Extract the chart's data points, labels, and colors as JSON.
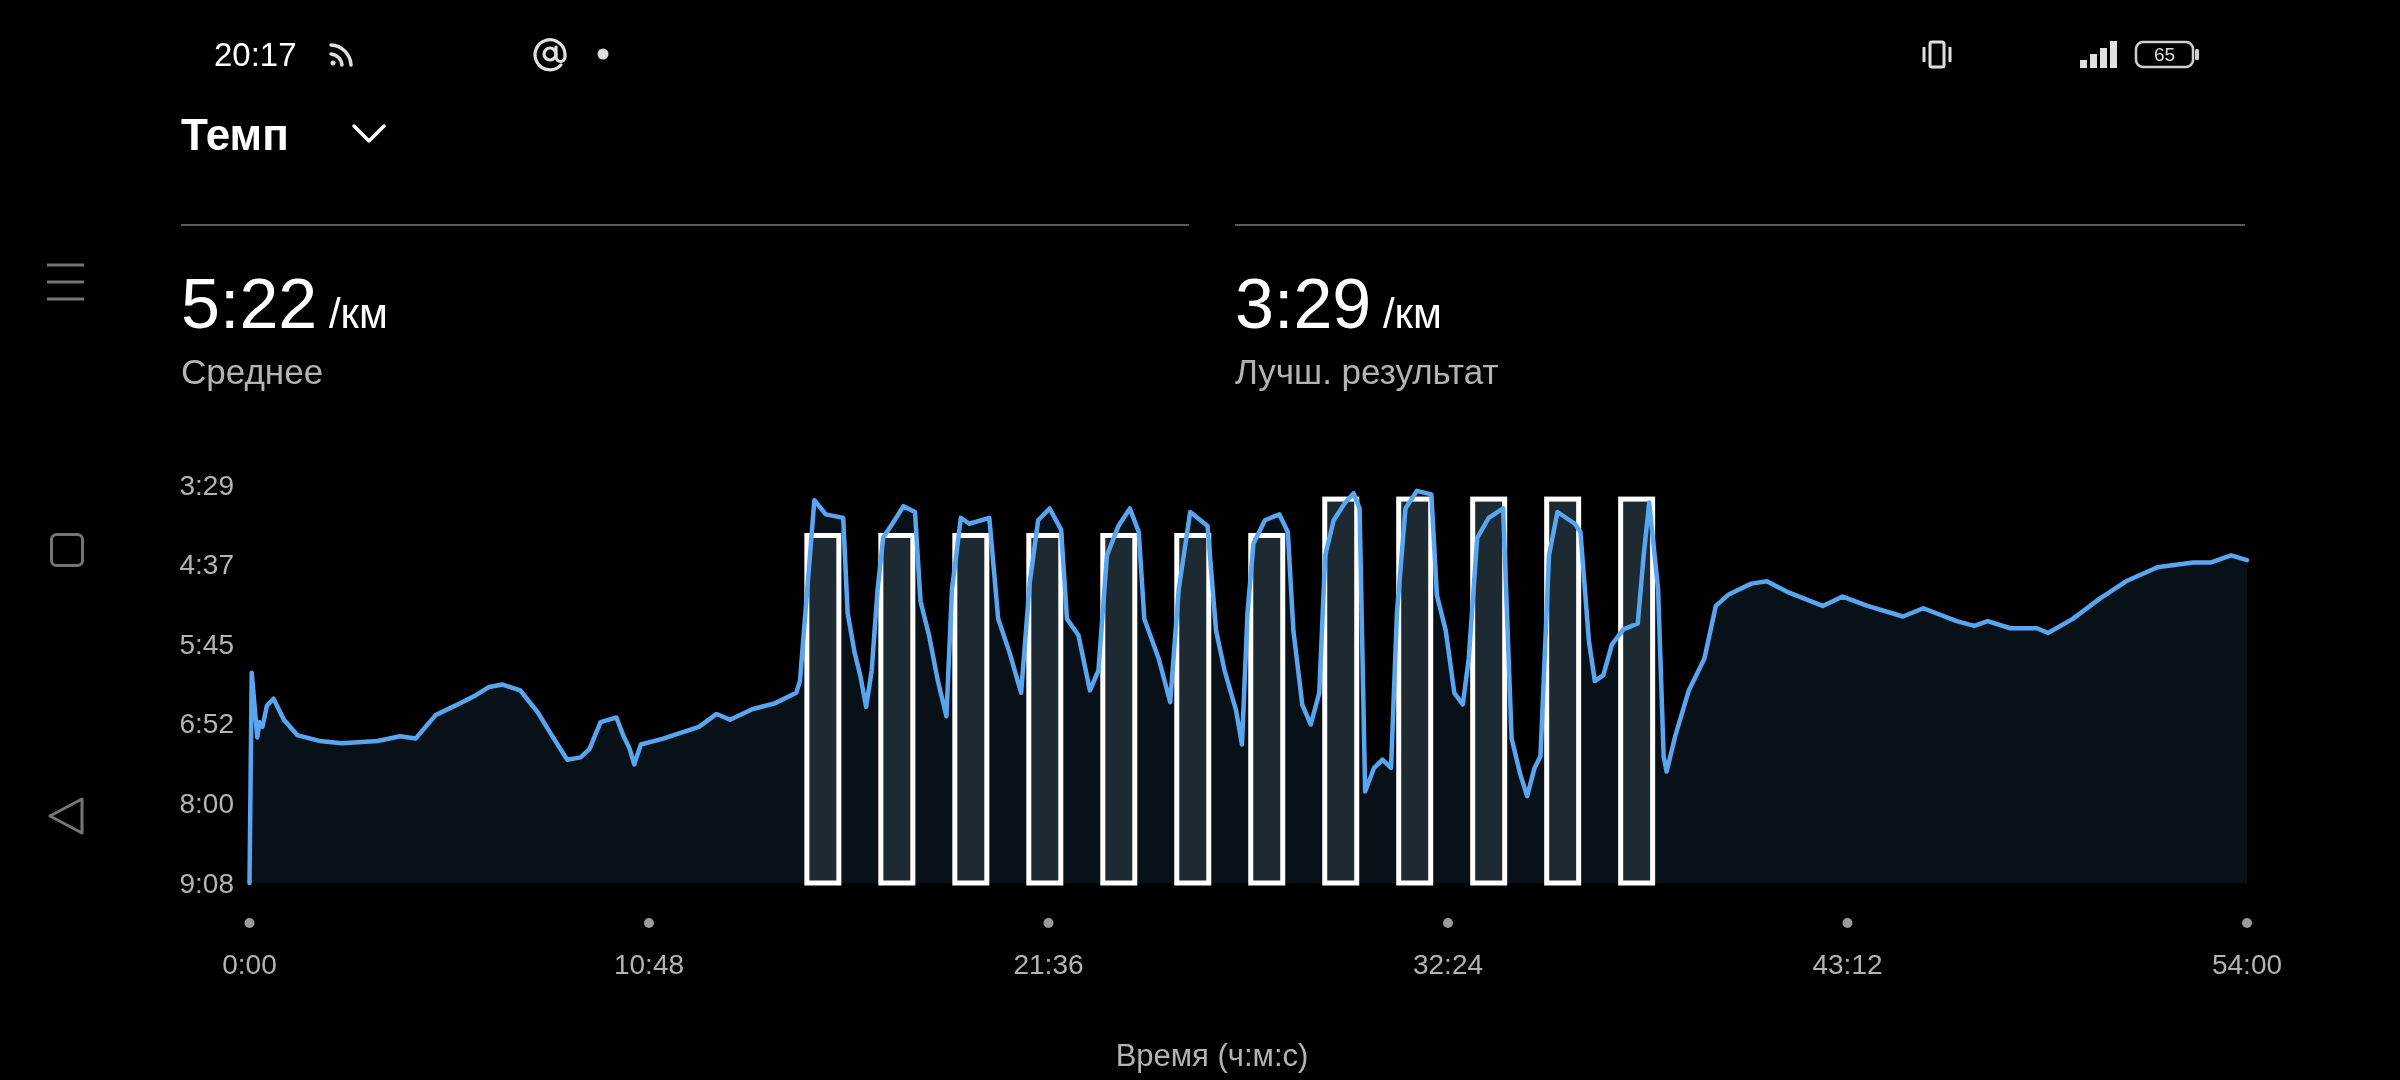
{
  "chart_data": {
    "type": "line",
    "title": "Темп",
    "xlabel": "Время (ч:м:с)",
    "annotations": [
      "5:22 /км",
      "Среднее",
      "3:29 /км",
      "Лучш. результат",
      "20:17",
      "65"
    ],
    "xlim": [
      0,
      54
    ],
    "xticks": [
      {
        "value": 0,
        "label": "0:00"
      },
      {
        "value": 10.8,
        "label": "10:48"
      },
      {
        "value": 21.6,
        "label": "21:36"
      },
      {
        "value": 32.4,
        "label": "32:24"
      },
      {
        "value": 43.2,
        "label": "43:12"
      },
      {
        "value": 54,
        "label": "54:00"
      }
    ],
    "ylim": [
      548,
      209
    ],
    "yticks": [
      {
        "value": 209,
        "label": "3:29"
      },
      {
        "value": 277,
        "label": "4:37"
      },
      {
        "value": 345,
        "label": "5:45"
      },
      {
        "value": 412,
        "label": "6:52"
      },
      {
        "value": 480,
        "label": "8:00"
      },
      {
        "value": 548,
        "label": "9:08"
      }
    ],
    "series": [
      {
        "color": "#58a5f0",
        "x": [
          0,
          0.06,
          0.21,
          0.27,
          0.35,
          0.47,
          0.65,
          0.93,
          1.29,
          1.89,
          2.5,
          3.46,
          4.07,
          4.49,
          5.03,
          5.75,
          6.12,
          6.48,
          6.84,
          7.32,
          7.8,
          8.17,
          8.59,
          8.95,
          9.19,
          9.49,
          9.92,
          10.1,
          10.28,
          10.4,
          10.58,
          11.18,
          12.15,
          12.63,
          12.99,
          13.59,
          14.2,
          14.78,
          14.88,
          15.27,
          15.58,
          16.05,
          16.17,
          16.36,
          16.51,
          16.67,
          16.82,
          16.98,
          17.13,
          17.44,
          17.68,
          17.99,
          18.14,
          18.37,
          18.61,
          18.84,
          18.99,
          19.23,
          19.46,
          20,
          20.24,
          20.55,
          20.86,
          21.09,
          21.32,
          21.63,
          21.94,
          22.1,
          22.41,
          22.72,
          22.95,
          23.18,
          23.49,
          23.8,
          24.04,
          24.19,
          24.58,
          24.89,
          25.12,
          25.43,
          25.9,
          26.13,
          26.36,
          26.67,
          26.83,
          26.98,
          27.14,
          27.45,
          27.84,
          28.07,
          28.22,
          28.46,
          28.69,
          28.92,
          29.08,
          29.31,
          29.62,
          29.85,
          30.01,
          30.16,
          30.4,
          30.63,
          30.86,
          31.02,
          31.25,
          31.56,
          31.95,
          32.1,
          32.34,
          32.57,
          32.8,
          32.96,
          33.19,
          33.5,
          33.89,
          34.12,
          34.35,
          34.54,
          34.74,
          34.9,
          35.13,
          35.36,
          35.83,
          35.98,
          36.21,
          36.37,
          36.6,
          36.83,
          37.14,
          37.53,
          37.69,
          37.84,
          37.95,
          38.08,
          38.23,
          38.31,
          38.55,
          38.91,
          39.33,
          39.64,
          40,
          40.6,
          41.02,
          41.57,
          42.53,
          43.07,
          43.74,
          44.7,
          45.25,
          46.15,
          46.63,
          46.99,
          47.6,
          48.32,
          48.62,
          49.29,
          50.01,
          50.73,
          51.58,
          52.54,
          53.03,
          53.57,
          54
        ],
        "values": [
          548,
          369,
          424,
          411,
          415,
          397,
          391,
          409,
          422,
          427,
          429,
          427,
          423,
          425,
          405,
          394,
          388,
          381,
          379,
          384,
          403,
          422,
          443,
          441,
          434,
          411,
          407,
          422,
          434,
          447,
          430,
          425,
          415,
          404,
          409,
          400,
          395,
          386,
          376,
          222,
          234,
          237,
          318,
          352,
          371,
          398,
          367,
          298,
          254,
          239,
          227,
          232,
          308,
          337,
          376,
          406,
          298,
          237,
          242,
          237,
          323,
          352,
          386,
          293,
          239,
          229,
          247,
          323,
          337,
          384,
          367,
          269,
          244,
          229,
          249,
          323,
          357,
          394,
          298,
          232,
          244,
          333,
          367,
          401,
          430,
          318,
          259,
          239,
          234,
          249,
          333,
          396,
          413,
          386,
          269,
          239,
          224,
          216,
          229,
          470,
          450,
          443,
          450,
          318,
          229,
          214,
          217,
          303,
          333,
          386,
          396,
          357,
          254,
          237,
          229,
          425,
          455,
          474,
          450,
          440,
          269,
          232,
          242,
          249,
          342,
          376,
          371,
          345,
          332,
          327,
          269,
          224,
          258,
          298,
          440,
          453,
          422,
          384,
          357,
          312,
          302,
          293,
          291,
          300,
          312,
          304,
          312,
          321,
          314,
          325,
          329,
          325,
          331,
          331,
          335,
          323,
          306,
          291,
          279,
          275,
          275,
          269,
          273
        ],
        "upper": [
          548,
          369,
          424,
          411,
          415,
          397,
          391,
          409,
          422,
          427,
          429,
          427,
          423,
          425,
          405,
          394,
          388,
          381,
          379,
          384,
          403,
          422,
          443,
          441,
          434,
          411,
          407,
          422,
          434,
          447,
          430,
          425,
          415,
          404,
          409,
          400,
          395,
          386,
          376,
          222,
          234,
          237,
          318,
          352,
          371,
          398,
          367,
          298,
          254,
          239,
          227,
          232,
          308,
          337,
          376,
          406,
          298,
          237,
          242,
          237,
          323,
          352,
          386,
          293,
          239,
          229,
          247,
          323,
          337,
          384,
          367,
          269,
          244,
          229,
          249,
          323,
          357,
          394,
          298,
          232,
          244,
          333,
          367,
          401,
          430,
          318,
          259,
          239,
          234,
          249,
          333,
          396,
          413,
          386,
          269,
          239,
          224,
          216,
          229,
          470,
          450,
          443,
          450,
          318,
          229,
          214,
          217,
          303,
          333,
          386,
          396,
          357,
          254,
          237,
          229,
          425,
          455,
          474,
          450,
          440,
          269,
          232,
          242,
          249,
          342,
          376,
          371,
          345,
          332,
          327,
          269,
          224,
          258,
          298,
          440,
          453,
          422,
          384,
          357,
          312,
          302,
          293,
          291,
          300,
          312,
          304,
          312,
          321,
          314,
          325,
          329,
          325,
          331,
          331,
          335,
          323,
          306,
          291,
          279,
          275,
          275,
          269,
          273
        ],
        "lower": [
          548,
          548,
          548,
          548,
          548,
          548,
          548,
          548,
          548,
          548,
          548,
          548,
          548,
          548,
          548,
          548,
          548,
          548,
          548,
          548,
          548,
          548,
          548,
          548,
          548,
          548,
          548,
          548,
          548,
          548,
          548,
          548,
          548,
          548,
          548,
          548,
          548,
          548,
          548,
          548,
          548,
          548,
          548,
          548,
          548,
          548,
          548,
          548,
          548,
          548,
          548,
          548,
          548,
          548,
          548,
          548,
          548,
          548,
          548,
          548,
          548,
          548,
          548,
          548,
          548,
          548,
          548,
          548,
          548,
          548,
          548,
          548,
          548,
          548,
          548,
          548,
          548,
          548,
          548,
          548,
          548,
          548,
          548,
          548,
          548,
          548,
          548,
          548,
          548,
          548,
          548,
          548,
          548,
          548,
          548,
          548,
          548,
          548,
          548,
          548,
          548,
          548,
          548,
          548,
          548,
          548,
          548,
          548,
          548,
          548,
          548,
          548,
          548,
          548,
          548,
          548,
          548,
          548,
          548,
          548,
          548,
          548,
          548,
          548,
          548,
          548,
          548,
          548,
          548,
          548,
          548,
          548,
          548,
          548,
          548,
          548,
          548,
          548,
          548,
          548,
          548,
          548,
          548,
          548,
          548,
          548,
          548,
          548,
          548,
          548,
          548,
          548,
          548,
          548,
          548,
          548,
          548,
          548,
          548,
          548,
          548,
          548,
          548
        ]
      },
      {
        "type": "bar",
        "color": "#1e2a31",
        "x": [
          15.5,
          17.5,
          19.5,
          21.5,
          23.5,
          25.5,
          27.5,
          29.5,
          31.5,
          33.5,
          35.5,
          37.5
        ],
        "base": [
          548,
          548,
          548,
          548,
          548,
          548,
          548,
          548,
          548,
          548,
          548,
          548
        ],
        "values": [
          -296,
          -296,
          -296,
          -296,
          -296,
          -296,
          -296,
          -327,
          -327,
          -327,
          -327,
          -327
        ]
      }
    ]
  }
}
